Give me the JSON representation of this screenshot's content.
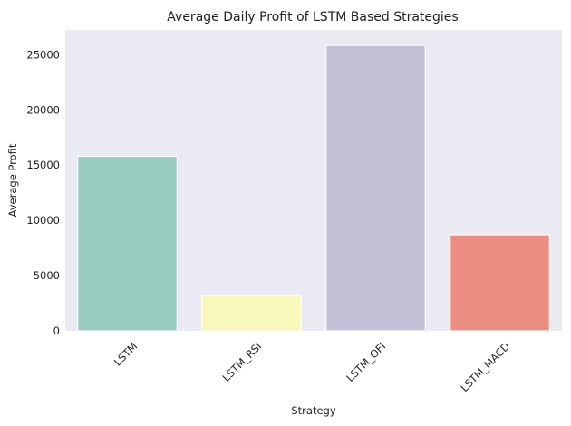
{
  "chart_data": {
    "type": "bar",
    "title": "Average Daily Profit of LSTM Based Strategies",
    "xlabel": "Strategy",
    "ylabel": "Average Profit",
    "categories": [
      "LSTM",
      "LSTM_RSI",
      "LSTM_OFI",
      "LSTM_MACD"
    ],
    "values": [
      15800,
      3200,
      25850,
      8700
    ],
    "colors": [
      "#99cbc1",
      "#f8f8bb",
      "#c2bfd7",
      "#eb8d81"
    ],
    "ylim": [
      0,
      27250
    ],
    "yticks": [
      0,
      5000,
      10000,
      15000,
      20000,
      25000
    ],
    "background": "#eaeaf2",
    "grid": false,
    "x_tick_rotation": 45
  }
}
